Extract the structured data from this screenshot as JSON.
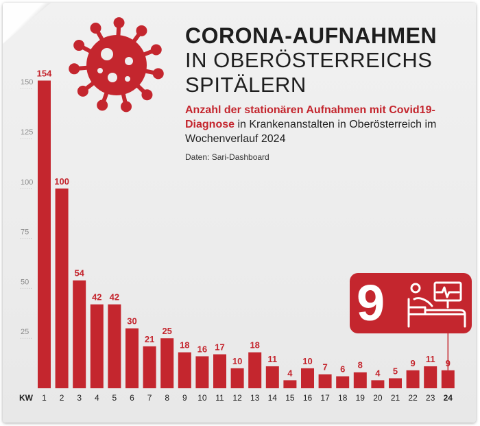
{
  "title": {
    "line1": "CORONA-AUFNAHMEN",
    "line2": "IN OBERÖSTERREICHS",
    "line3": "SPITÄLERN"
  },
  "subtitle": {
    "highlight": "Anzahl der stationären Aufnahmen mit Covid19-Diagnose",
    "rest": " in Krankenanstalten in Oberösterreich im Wochenverlauf 2024"
  },
  "source": "Daten: Sari-Dashboard",
  "badge": {
    "value": "9",
    "icon": "hospital-bed-icon"
  },
  "colors": {
    "bar": "#c4262e",
    "accent": "#c4262e",
    "text": "#1e1e1e"
  },
  "chart_data": {
    "type": "bar",
    "title": "Corona-Aufnahmen in Oberösterreichs Spitälern",
    "xlabel": "KW",
    "ylabel": "",
    "categories": [
      "1",
      "2",
      "3",
      "4",
      "5",
      "6",
      "7",
      "8",
      "9",
      "10",
      "11",
      "12",
      "13",
      "14",
      "15",
      "16",
      "17",
      "18",
      "19",
      "20",
      "21",
      "22",
      "23",
      "24"
    ],
    "values": [
      154,
      100,
      54,
      42,
      42,
      30,
      21,
      25,
      18,
      16,
      17,
      10,
      18,
      11,
      4,
      10,
      7,
      6,
      8,
      4,
      5,
      9,
      11,
      9
    ],
    "yticks": [
      25,
      50,
      75,
      100,
      125,
      150
    ],
    "ylim": [
      0,
      160
    ],
    "grid": false,
    "highlight_category": "24"
  }
}
